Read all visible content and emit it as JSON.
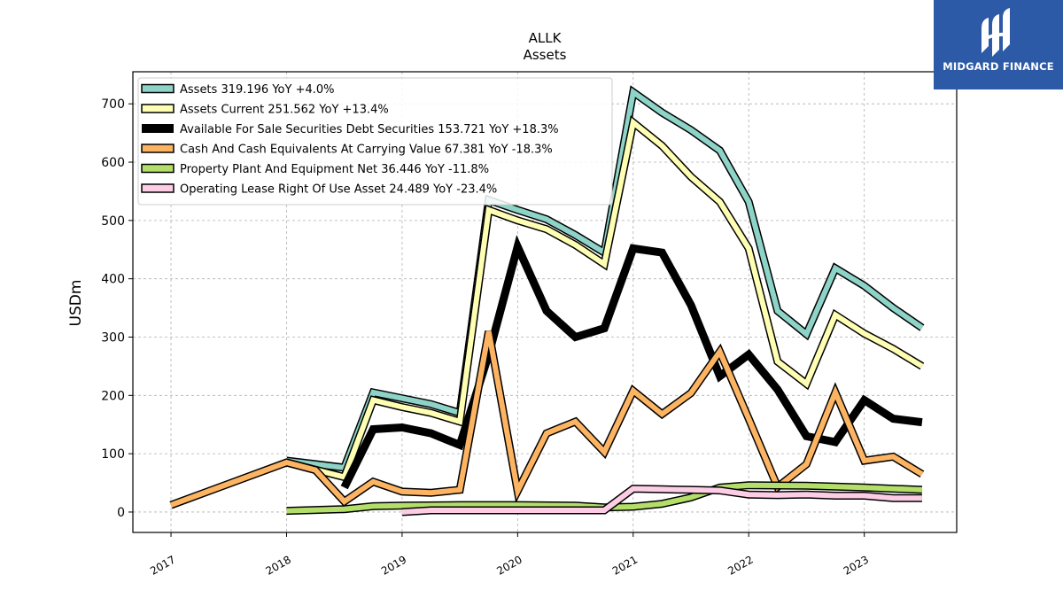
{
  "chart_data": {
    "type": "line",
    "title": "ALLK",
    "subtitle": "Assets",
    "ylabel": "USDm",
    "xlabel": "",
    "ylim": [
      -35,
      755
    ],
    "xlim": [
      2016.67,
      2023.8
    ],
    "yticks": [
      0,
      100,
      200,
      300,
      400,
      500,
      600,
      700
    ],
    "xticks": [
      "2017",
      "2018",
      "2019",
      "2020",
      "2021",
      "2022",
      "2023"
    ],
    "grid": true,
    "legend_position": "top-left",
    "series": [
      {
        "name": "Assets  319.196 YoY +4.0%",
        "color": "#8dd3c7",
        "width": 6,
        "x": [
          2018.0,
          2018.5,
          2018.75,
          2019.0,
          2019.25,
          2019.5,
          2019.75,
          2020.0,
          2020.25,
          2020.5,
          2020.75,
          2021.0,
          2021.25,
          2021.5,
          2021.75,
          2022.0,
          2022.25,
          2022.5,
          2022.75,
          2023.0,
          2023.25,
          2023.5
        ],
        "y": [
          88,
          76,
          205,
          195,
          185,
          170,
          535,
          518,
          502,
          475,
          445,
          720,
          685,
          655,
          620,
          532,
          345,
          305,
          418,
          388,
          350,
          316
        ]
      },
      {
        "name": "Assets Current  251.562 YoY +13.4%",
        "color": "#ffffb3",
        "width": 6,
        "x": [
          2018.0,
          2018.5,
          2018.75,
          2019.0,
          2019.25,
          2019.5,
          2019.75,
          2020.0,
          2020.25,
          2020.5,
          2020.75,
          2021.0,
          2021.25,
          2021.5,
          2021.75,
          2022.0,
          2022.25,
          2022.5,
          2022.75,
          2023.0,
          2023.25,
          2023.5
        ],
        "y": [
          85,
          60,
          192,
          180,
          170,
          155,
          518,
          500,
          485,
          458,
          425,
          668,
          628,
          575,
          532,
          452,
          258,
          220,
          338,
          306,
          280,
          250
        ]
      },
      {
        "name": "Available For Sale Securities Debt Securities  153.721 YoY +18.3%",
        "color": "#000000",
        "width": 9,
        "x": [
          2018.5,
          2018.75,
          2019.0,
          2019.25,
          2019.5,
          2019.75,
          2020.0,
          2020.25,
          2020.5,
          2020.75,
          2021.0,
          2021.25,
          2021.5,
          2021.75,
          2022.0,
          2022.25,
          2022.5,
          2022.75,
          2023.0,
          2023.25,
          2023.5
        ],
        "y": [
          42,
          142,
          145,
          135,
          115,
          270,
          455,
          345,
          300,
          315,
          452,
          445,
          355,
          233,
          270,
          210,
          130,
          120,
          192,
          160,
          154
        ]
      },
      {
        "name": "Cash And Cash Equivalents At Carrying Value  67.381 YoY -18.3%",
        "color": "#fdb462",
        "width": 6,
        "x": [
          2017.0,
          2018.0,
          2018.25,
          2018.5,
          2018.75,
          2019.0,
          2019.25,
          2019.5,
          2019.75,
          2020.0,
          2020.25,
          2020.5,
          2020.75,
          2021.0,
          2021.25,
          2021.5,
          2021.75,
          2022.0,
          2022.25,
          2022.5,
          2022.75,
          2023.0,
          2023.25,
          2023.5
        ],
        "y": [
          12,
          85,
          72,
          18,
          52,
          35,
          33,
          38,
          310,
          36,
          135,
          155,
          103,
          208,
          168,
          204,
          275,
          160,
          43,
          82,
          205,
          88,
          95,
          65
        ]
      },
      {
        "name": "Property Plant And Equipment Net  36.446 YoY -11.8%",
        "color": "#b3de69",
        "width": 6,
        "x": [
          2018.0,
          2018.5,
          2018.75,
          2019.0,
          2019.5,
          2020.0,
          2020.5,
          2020.75,
          2021.0,
          2021.25,
          2021.5,
          2021.75,
          2022.0,
          2022.5,
          2023.0,
          2023.5
        ],
        "y": [
          2,
          5,
          10,
          11,
          12,
          12,
          11,
          8,
          9,
          14,
          25,
          42,
          46,
          45,
          42,
          38
        ]
      },
      {
        "name": "Operating Lease Right Of Use Asset  24.489 YoY -23.4%",
        "color": "#fccde5",
        "width": 6,
        "x": [
          2019.0,
          2019.25,
          2019.5,
          2020.0,
          2020.5,
          2020.75,
          2021.0,
          2021.25,
          2021.5,
          2021.75,
          2022.0,
          2022.25,
          2022.5,
          2022.75,
          2023.0,
          2023.25,
          2023.5
        ],
        "y": [
          0,
          3,
          3,
          3,
          3,
          3,
          40,
          39,
          38,
          37,
          30,
          29,
          30,
          28,
          28,
          24,
          24
        ]
      }
    ]
  },
  "logo": {
    "text": "MIDGARD FINANCE"
  }
}
